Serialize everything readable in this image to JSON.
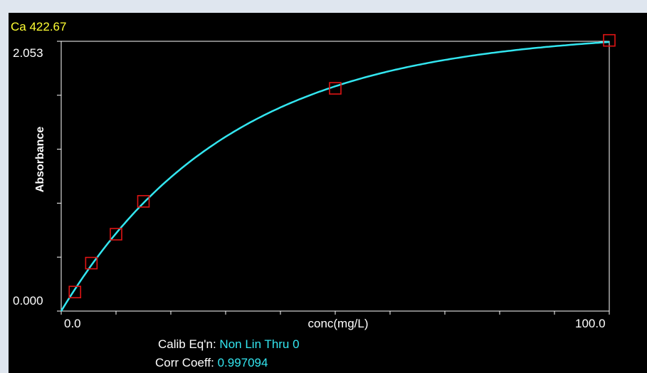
{
  "chart_data": {
    "type": "line",
    "title": "Ca 422.67",
    "ylabel": "Absorbance",
    "xlabel": "conc(mg/L)",
    "xlim": [
      0.0,
      100.0
    ],
    "ylim": [
      0.0,
      2.053
    ],
    "x_tick_labels": [
      "0.0",
      "100.0"
    ],
    "y_tick_labels": [
      "2.053",
      "0.000"
    ],
    "points": [
      {
        "x": 2.5,
        "y": 0.145
      },
      {
        "x": 5.5,
        "y": 0.365
      },
      {
        "x": 10.0,
        "y": 0.585
      },
      {
        "x": 15.0,
        "y": 0.835
      },
      {
        "x": 50.0,
        "y": 1.695
      },
      {
        "x": 100.0,
        "y": 2.06
      }
    ],
    "curve": {
      "type": "non-linear through zero",
      "color": "#33e6f0"
    },
    "marker_color": "#e01414",
    "grid": false
  },
  "info": {
    "calib_label": "Calib Eq'n:",
    "calib_value": "Non Lin Thru 0",
    "corr_label": "Corr Coeff:",
    "corr_value": "0.997094"
  }
}
